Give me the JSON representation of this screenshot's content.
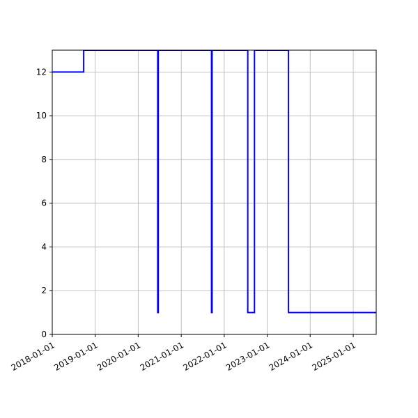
{
  "chart_data": {
    "type": "line",
    "title": "",
    "xlabel": "",
    "ylabel": "",
    "x_axis_type": "date",
    "xlim": [
      "2018-01-01",
      "2025-07-15"
    ],
    "ylim": [
      0,
      13
    ],
    "grid": true,
    "legend": "none",
    "x_ticks": [
      "2018-01-01",
      "2019-01-01",
      "2020-01-01",
      "2021-01-01",
      "2022-01-01",
      "2023-01-01",
      "2024-01-01",
      "2025-01-01"
    ],
    "y_ticks": [
      0,
      2,
      4,
      6,
      8,
      10,
      12
    ],
    "series": [
      {
        "color": "#0000ff",
        "step": "post",
        "points": [
          {
            "date": "2018-01-01",
            "value": 12
          },
          {
            "date": "2018-09-25",
            "value": 13
          },
          {
            "date": "2020-06-15",
            "value": 1
          },
          {
            "date": "2020-06-20",
            "value": 13
          },
          {
            "date": "2021-09-15",
            "value": 1
          },
          {
            "date": "2021-09-20",
            "value": 13
          },
          {
            "date": "2022-07-20",
            "value": 1
          },
          {
            "date": "2022-09-15",
            "value": 13
          },
          {
            "date": "2023-07-01",
            "value": 1
          },
          {
            "date": "2025-07-15",
            "value": 1
          }
        ]
      }
    ]
  }
}
